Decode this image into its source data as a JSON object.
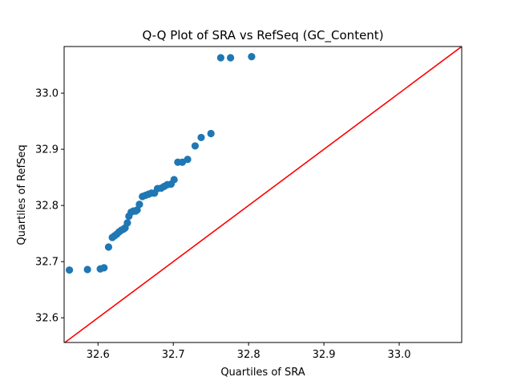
{
  "chart_data": {
    "type": "scatter",
    "title": "Q-Q Plot of SRA vs RefSeq (GC_Content)",
    "xlabel": "Quartiles of SRA",
    "ylabel": "Quartiles of RefSeq",
    "xlim": [
      32.555,
      33.083
    ],
    "ylim": [
      32.556,
      33.083
    ],
    "xticks": [
      32.6,
      32.7,
      32.8,
      32.9,
      33.0
    ],
    "yticks": [
      32.6,
      32.7,
      32.8,
      32.9,
      33.0
    ],
    "tick_labels_x": [
      "32.6",
      "32.7",
      "32.8",
      "32.9",
      "33.0"
    ],
    "tick_labels_y": [
      "32.6",
      "32.7",
      "32.8",
      "32.9",
      "33.0"
    ],
    "grid": false,
    "legend": "none",
    "point_color": "#1f77b4",
    "reference_line": {
      "from": [
        32.555,
        32.555
      ],
      "to": [
        33.083,
        33.083
      ],
      "color": "#ff0000"
    },
    "points": [
      {
        "x": 32.562,
        "y": 32.685
      },
      {
        "x": 32.586,
        "y": 32.686
      },
      {
        "x": 32.603,
        "y": 32.687
      },
      {
        "x": 32.608,
        "y": 32.689
      },
      {
        "x": 32.614,
        "y": 32.726
      },
      {
        "x": 32.619,
        "y": 32.743
      },
      {
        "x": 32.622,
        "y": 32.746
      },
      {
        "x": 32.625,
        "y": 32.749
      },
      {
        "x": 32.628,
        "y": 32.753
      },
      {
        "x": 32.631,
        "y": 32.756
      },
      {
        "x": 32.634,
        "y": 32.758
      },
      {
        "x": 32.636,
        "y": 32.76
      },
      {
        "x": 32.639,
        "y": 32.769
      },
      {
        "x": 32.641,
        "y": 32.781
      },
      {
        "x": 32.644,
        "y": 32.788
      },
      {
        "x": 32.647,
        "y": 32.79
      },
      {
        "x": 32.65,
        "y": 32.79
      },
      {
        "x": 32.652,
        "y": 32.792
      },
      {
        "x": 32.655,
        "y": 32.802
      },
      {
        "x": 32.659,
        "y": 32.816
      },
      {
        "x": 32.663,
        "y": 32.818
      },
      {
        "x": 32.667,
        "y": 32.82
      },
      {
        "x": 32.671,
        "y": 32.822
      },
      {
        "x": 32.675,
        "y": 32.822
      },
      {
        "x": 32.679,
        "y": 32.83
      },
      {
        "x": 32.684,
        "y": 32.831
      },
      {
        "x": 32.688,
        "y": 32.834
      },
      {
        "x": 32.692,
        "y": 32.837
      },
      {
        "x": 32.697,
        "y": 32.838
      },
      {
        "x": 32.701,
        "y": 32.846
      },
      {
        "x": 32.706,
        "y": 32.877
      },
      {
        "x": 32.712,
        "y": 32.877
      },
      {
        "x": 32.719,
        "y": 32.882
      },
      {
        "x": 32.729,
        "y": 32.906
      },
      {
        "x": 32.737,
        "y": 32.921
      },
      {
        "x": 32.75,
        "y": 32.928
      },
      {
        "x": 32.763,
        "y": 33.063
      },
      {
        "x": 32.776,
        "y": 33.063
      },
      {
        "x": 32.804,
        "y": 33.065
      }
    ]
  }
}
